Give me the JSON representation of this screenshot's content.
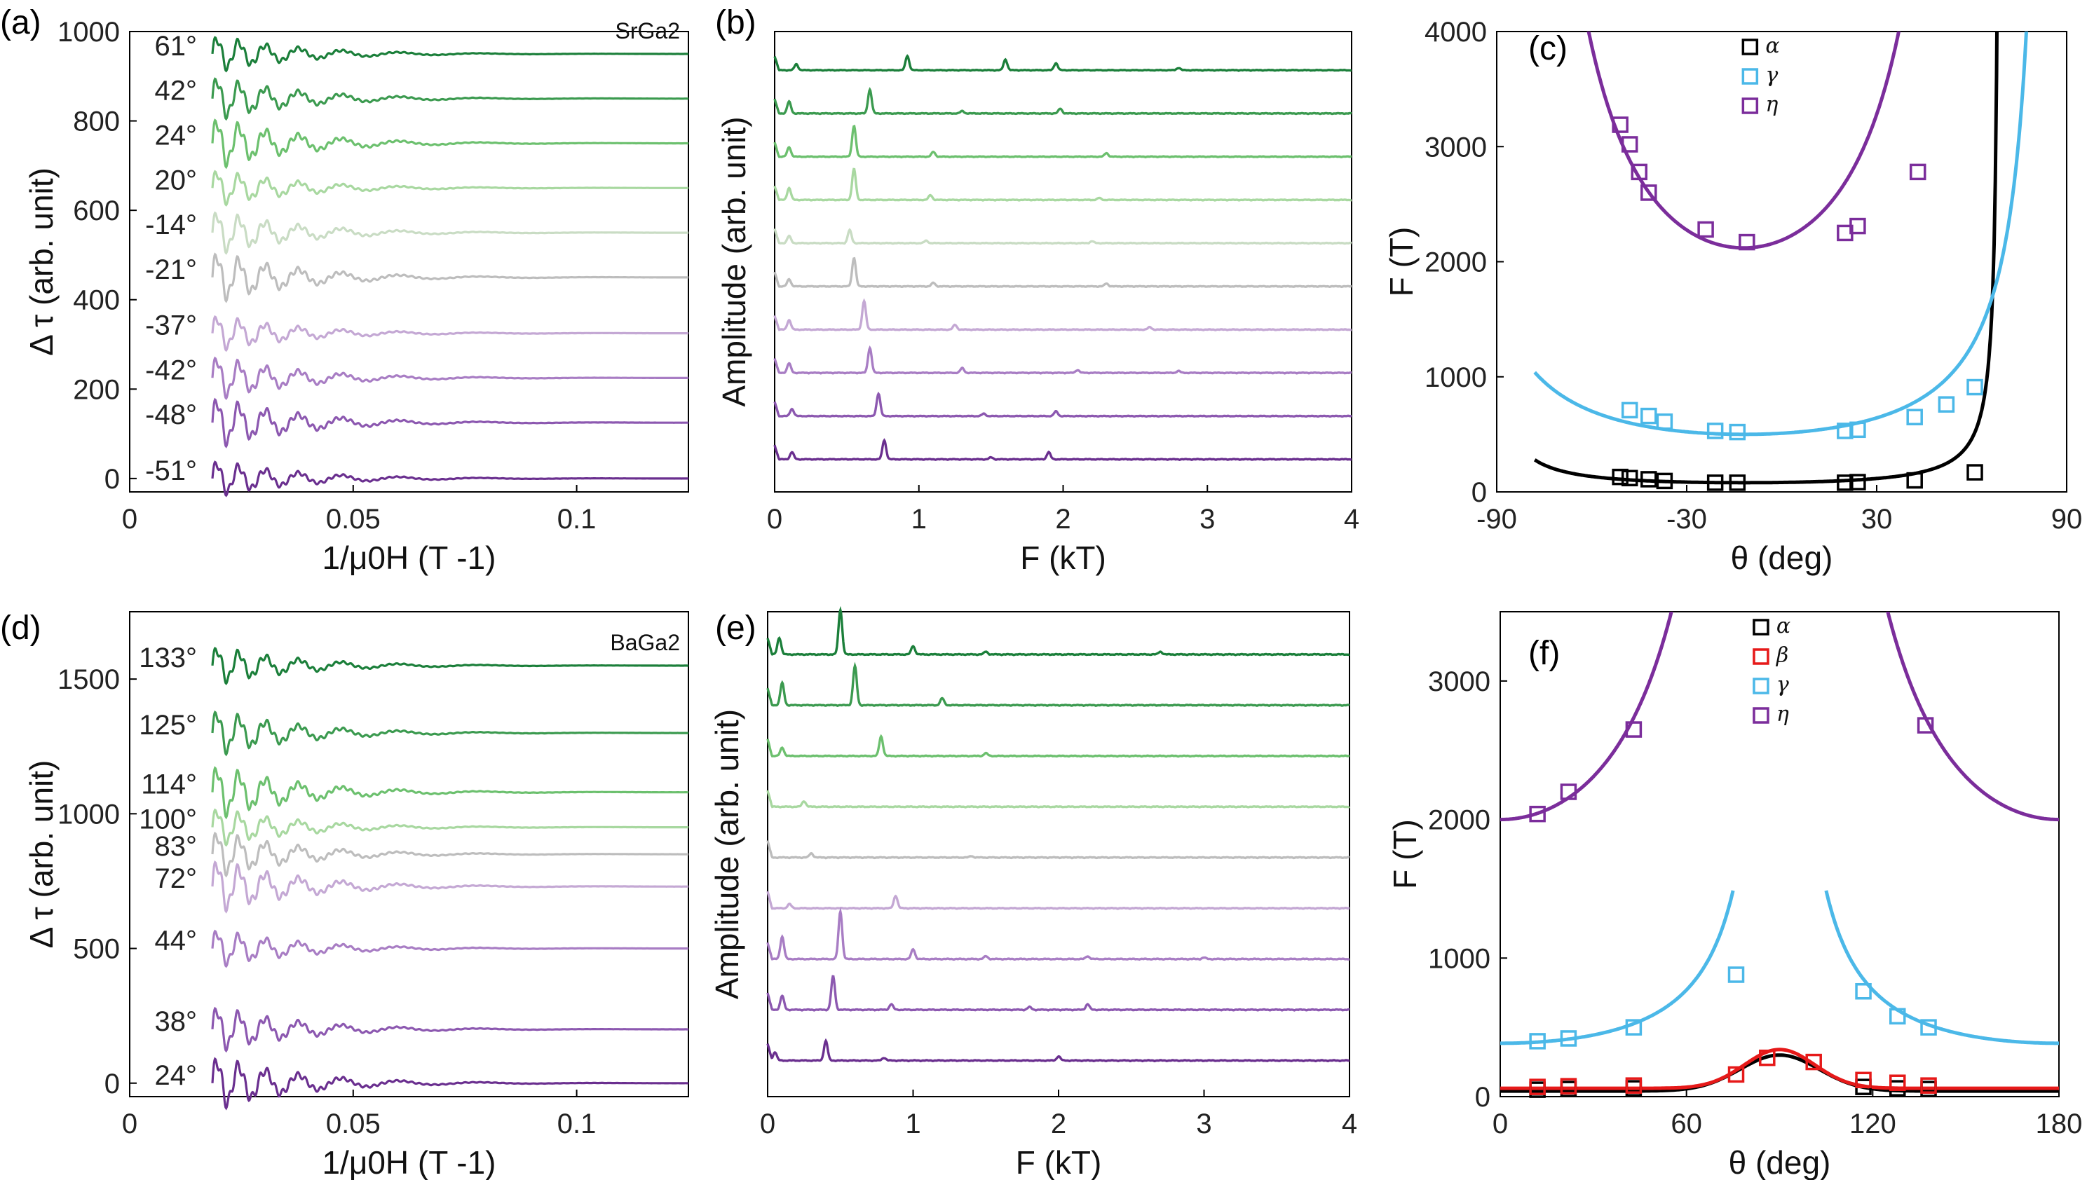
{
  "chart_data": [
    {
      "panel": "(a)",
      "type": "line",
      "xlabel": "1/μ0H (T -1)",
      "ylabel": "Δ τ (arb. unit)",
      "xlim": [
        0,
        0.125
      ],
      "ylim": [
        -30,
        1000
      ],
      "xticks": [
        "0",
        "0.05",
        "0.1"
      ],
      "yticks": [
        "0",
        "200",
        "400",
        "600",
        "800",
        "1000"
      ],
      "annotation": "SrGa2",
      "series": [
        {
          "name": "61°",
          "offset": 950,
          "color": "#1b7f3a"
        },
        {
          "name": "42°",
          "offset": 850,
          "color": "#3b9a4f"
        },
        {
          "name": "24°",
          "offset": 750,
          "color": "#6cc06e"
        },
        {
          "name": "20°",
          "offset": 650,
          "color": "#a8d8a0"
        },
        {
          "name": "-14°",
          "offset": 550,
          "color": "#c9dcc4"
        },
        {
          "name": "-21°",
          "offset": 450,
          "color": "#bdbdbd"
        },
        {
          "name": "-37°",
          "offset": 325,
          "color": "#c4a8d4"
        },
        {
          "name": "-42°",
          "offset": 225,
          "color": "#a87dc4"
        },
        {
          "name": "-48°",
          "offset": 125,
          "color": "#8c58b0"
        },
        {
          "name": "-51°",
          "offset": 0,
          "color": "#6a2f8f"
        }
      ]
    },
    {
      "panel": "(b)",
      "type": "line",
      "xlabel": "F (kT)",
      "ylabel": "Amplitude (arb. unit)",
      "xlim": [
        0,
        4
      ],
      "xticks": [
        "0",
        "1",
        "2",
        "3",
        "4"
      ],
      "series": [
        {
          "color": "#1b7f3a",
          "peaks": [
            [
              0.15,
              0.25
            ],
            [
              0.92,
              0.6
            ],
            [
              1.6,
              0.45
            ],
            [
              1.95,
              0.3
            ],
            [
              2.8,
              0.1
            ]
          ]
        },
        {
          "color": "#3b9a4f",
          "peaks": [
            [
              0.1,
              0.5
            ],
            [
              0.66,
              1.0
            ],
            [
              1.3,
              0.1
            ],
            [
              1.98,
              0.2
            ]
          ]
        },
        {
          "color": "#6cc06e",
          "peaks": [
            [
              0.1,
              0.4
            ],
            [
              0.55,
              1.3
            ],
            [
              1.1,
              0.2
            ],
            [
              2.3,
              0.15
            ]
          ]
        },
        {
          "color": "#a8d8a0",
          "peaks": [
            [
              0.1,
              0.5
            ],
            [
              0.55,
              1.3
            ],
            [
              1.08,
              0.2
            ],
            [
              2.25,
              0.08
            ]
          ]
        },
        {
          "color": "#c9dcc4",
          "peaks": [
            [
              0.1,
              0.3
            ],
            [
              0.52,
              0.55
            ],
            [
              1.05,
              0.1
            ],
            [
              2.2,
              0.08
            ]
          ]
        },
        {
          "color": "#bdbdbd",
          "peaks": [
            [
              0.1,
              0.3
            ],
            [
              0.55,
              1.2
            ],
            [
              1.1,
              0.15
            ],
            [
              2.3,
              0.12
            ]
          ]
        },
        {
          "color": "#c4a8d4",
          "peaks": [
            [
              0.1,
              0.4
            ],
            [
              0.62,
              1.2
            ],
            [
              1.25,
              0.2
            ],
            [
              2.6,
              0.1
            ]
          ]
        },
        {
          "color": "#a87dc4",
          "peaks": [
            [
              0.1,
              0.4
            ],
            [
              0.66,
              1.05
            ],
            [
              1.3,
              0.2
            ],
            [
              2.1,
              0.12
            ],
            [
              2.8,
              0.08
            ]
          ]
        },
        {
          "color": "#8c58b0",
          "peaks": [
            [
              0.12,
              0.3
            ],
            [
              0.72,
              0.95
            ],
            [
              1.45,
              0.1
            ],
            [
              1.95,
              0.2
            ]
          ]
        },
        {
          "color": "#6a2f8f",
          "peaks": [
            [
              0.12,
              0.3
            ],
            [
              0.76,
              0.8
            ],
            [
              1.5,
              0.08
            ],
            [
              1.9,
              0.3
            ]
          ]
        }
      ]
    },
    {
      "panel": "(c)",
      "type": "scatter",
      "xlabel": "θ (deg)",
      "ylabel": "F (T)",
      "xlim": [
        -90,
        90
      ],
      "ylim": [
        0,
        4000
      ],
      "xticks": [
        "-90",
        "-30",
        "30",
        "90"
      ],
      "yticks": [
        "0",
        "1000",
        "2000",
        "3000",
        "4000"
      ],
      "series": [
        {
          "name": "α",
          "color": "#000000",
          "curve": {
            "f0": 80,
            "theta0": -12,
            "scale": 81
          },
          "points": [
            [
              -51,
              130
            ],
            [
              -48,
              120
            ],
            [
              -42,
              110
            ],
            [
              -37,
              95
            ],
            [
              -21,
              80
            ],
            [
              -14,
              80
            ],
            [
              20,
              80
            ],
            [
              24,
              85
            ],
            [
              42,
              100
            ],
            [
              61,
              170
            ]
          ]
        },
        {
          "name": "γ",
          "color": "#4bb8e8",
          "curve": {
            "f0": 500,
            "theta0": -12,
            "scale": 97
          },
          "points": [
            [
              -48,
              710
            ],
            [
              -42,
              660
            ],
            [
              -37,
              610
            ],
            [
              -21,
              530
            ],
            [
              -14,
              520
            ],
            [
              20,
              530
            ],
            [
              24,
              540
            ],
            [
              42,
              650
            ],
            [
              52,
              760
            ],
            [
              61,
              910
            ]
          ]
        },
        {
          "name": "η",
          "color": "#7b2d9b",
          "curve": {
            "f0": 2120,
            "theta0": -12,
            "scale": 76
          },
          "points": [
            [
              -51,
              3190
            ],
            [
              -48,
              3020
            ],
            [
              -45,
              2780
            ],
            [
              -42,
              2600
            ],
            [
              -24,
              2280
            ],
            [
              -11,
              2170
            ],
            [
              20,
              2250
            ],
            [
              24,
              2310
            ],
            [
              43,
              2780
            ]
          ]
        }
      ]
    },
    {
      "panel": "(d)",
      "type": "line",
      "xlabel": "1/μ0H (T -1)",
      "ylabel": "Δ τ (arb. unit)",
      "xlim": [
        0,
        0.125
      ],
      "ylim": [
        -50,
        1750
      ],
      "xticks": [
        "0",
        "0.05",
        "0.1"
      ],
      "yticks": [
        "0",
        "500",
        "1000",
        "1500"
      ],
      "annotation": "BaGa2",
      "series": [
        {
          "name": "133°",
          "offset": 1550,
          "color": "#1b7f3a"
        },
        {
          "name": "125°",
          "offset": 1300,
          "color": "#3b9a4f"
        },
        {
          "name": "114°",
          "offset": 1080,
          "color": "#6cc06e"
        },
        {
          "name": "100°",
          "offset": 950,
          "color": "#a8d8a0"
        },
        {
          "name": "83°",
          "offset": 850,
          "color": "#bdbdbd"
        },
        {
          "name": "72°",
          "offset": 730,
          "color": "#c4a8d4"
        },
        {
          "name": "44°",
          "offset": 500,
          "color": "#a87dc4"
        },
        {
          "name": "38°",
          "offset": 200,
          "color": "#8c58b0"
        },
        {
          "name": "24°",
          "offset": 0,
          "color": "#6a2f8f"
        }
      ]
    },
    {
      "panel": "(e)",
      "type": "line",
      "xlabel": "F (kT)",
      "ylabel": "Amplitude (arb. unit)",
      "xlim": [
        0,
        4
      ],
      "xticks": [
        "0",
        "1",
        "2",
        "3",
        "4"
      ],
      "series": [
        {
          "color": "#1b7f3a",
          "peaks": [
            [
              0.08,
              0.6
            ],
            [
              0.5,
              1.6
            ],
            [
              1.0,
              0.3
            ],
            [
              1.5,
              0.1
            ],
            [
              2.7,
              0.1
            ]
          ]
        },
        {
          "color": "#3b9a4f",
          "peaks": [
            [
              0.1,
              0.8
            ],
            [
              0.6,
              1.4
            ],
            [
              1.2,
              0.25
            ]
          ]
        },
        {
          "color": "#6cc06e",
          "peaks": [
            [
              0.1,
              0.3
            ],
            [
              0.78,
              0.7
            ],
            [
              1.5,
              0.1
            ]
          ]
        },
        {
          "color": "#a8d8a0",
          "peaks": [
            [
              0.25,
              0.2
            ]
          ]
        },
        {
          "color": "#bdbdbd",
          "peaks": [
            [
              0.3,
              0.15
            ],
            [
              1.4,
              0.05
            ]
          ]
        },
        {
          "color": "#c4a8d4",
          "peaks": [
            [
              0.15,
              0.15
            ],
            [
              0.88,
              0.45
            ]
          ]
        },
        {
          "color": "#a87dc4",
          "peaks": [
            [
              0.1,
              0.8
            ],
            [
              0.5,
              1.7
            ],
            [
              1.0,
              0.35
            ],
            [
              1.5,
              0.1
            ],
            [
              2.2,
              0.1
            ],
            [
              3.0,
              0.05
            ]
          ]
        },
        {
          "color": "#8c58b0",
          "peaks": [
            [
              0.1,
              0.5
            ],
            [
              0.45,
              1.2
            ],
            [
              0.85,
              0.2
            ],
            [
              1.8,
              0.1
            ],
            [
              2.2,
              0.2
            ]
          ]
        },
        {
          "color": "#6a2f8f",
          "peaks": [
            [
              0.05,
              0.3
            ],
            [
              0.4,
              0.7
            ],
            [
              0.8,
              0.1
            ],
            [
              2.0,
              0.15
            ]
          ]
        }
      ]
    },
    {
      "panel": "(f)",
      "type": "scatter",
      "xlabel": "θ (deg)",
      "ylabel": "F (T)",
      "xlim": [
        0,
        180
      ],
      "ylim": [
        0,
        3500
      ],
      "xticks": [
        "0",
        "60",
        "120",
        "180"
      ],
      "yticks": [
        "0",
        "1000",
        "2000",
        "3000"
      ],
      "series": [
        {
          "name": "α",
          "color": "#000000",
          "points": [
            [
              12,
              50
            ],
            [
              22,
              55
            ],
            [
              43,
              60
            ],
            [
              117,
              70
            ],
            [
              128,
              60
            ],
            [
              138,
              55
            ]
          ]
        },
        {
          "name": "β",
          "color": "#e61919",
          "points": [
            [
              12,
              70
            ],
            [
              22,
              75
            ],
            [
              43,
              80
            ],
            [
              76,
              160
            ],
            [
              86,
              280
            ],
            [
              101,
              250
            ],
            [
              117,
              120
            ],
            [
              128,
              100
            ],
            [
              138,
              80
            ]
          ]
        },
        {
          "name": "γ",
          "color": "#4bb8e8",
          "points": [
            [
              12,
              400
            ],
            [
              22,
              420
            ],
            [
              43,
              500
            ],
            [
              76,
              880
            ],
            [
              117,
              760
            ],
            [
              128,
              580
            ],
            [
              138,
              500
            ]
          ]
        },
        {
          "name": "η",
          "color": "#7b2d9b",
          "points": [
            [
              12,
              2040
            ],
            [
              22,
              2200
            ],
            [
              43,
              2650
            ],
            [
              137,
              2680
            ]
          ]
        }
      ]
    }
  ]
}
